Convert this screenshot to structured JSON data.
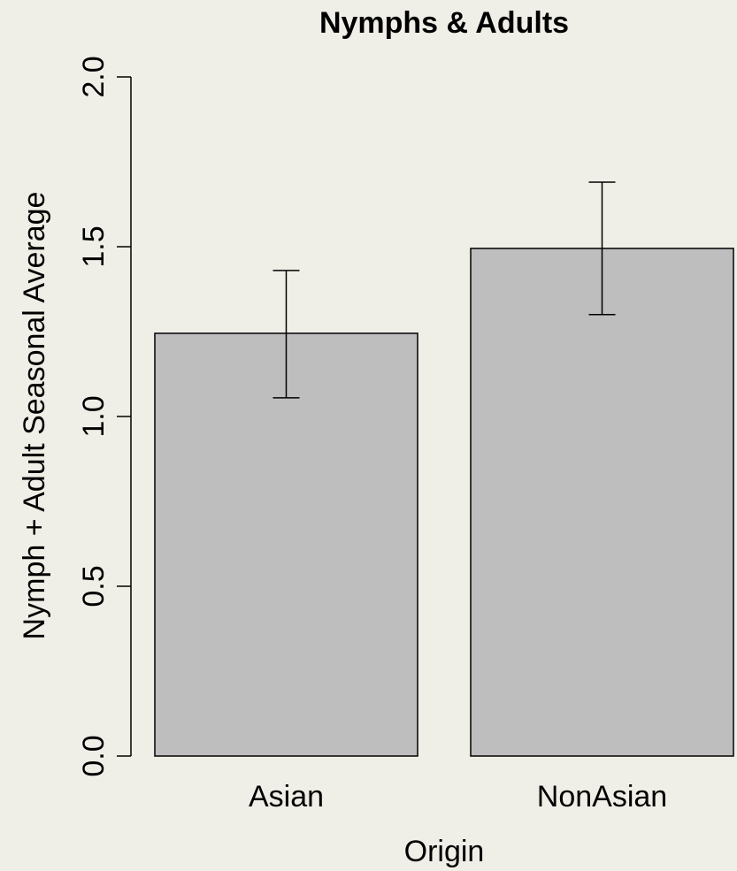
{
  "chart_data": {
    "type": "bar",
    "title": "Nymphs & Adults",
    "xlabel": "Origin",
    "ylabel": "Nymph + Adult Seasonal Average",
    "categories": [
      "Asian",
      "NonAsian"
    ],
    "values": [
      1.245,
      1.495
    ],
    "error_low": [
      1.055,
      1.3
    ],
    "error_high": [
      1.43,
      1.69
    ],
    "ylim": [
      0,
      2.0
    ],
    "yticks": [
      0.0,
      0.5,
      1.0,
      1.5,
      2.0
    ],
    "ytick_labels": [
      "0.0",
      "0.5",
      "1.0",
      "1.5",
      "2.0"
    ],
    "colors": {
      "bar": "#bebebe",
      "background": "#f0efe7"
    },
    "grid": false,
    "legend": "none"
  }
}
